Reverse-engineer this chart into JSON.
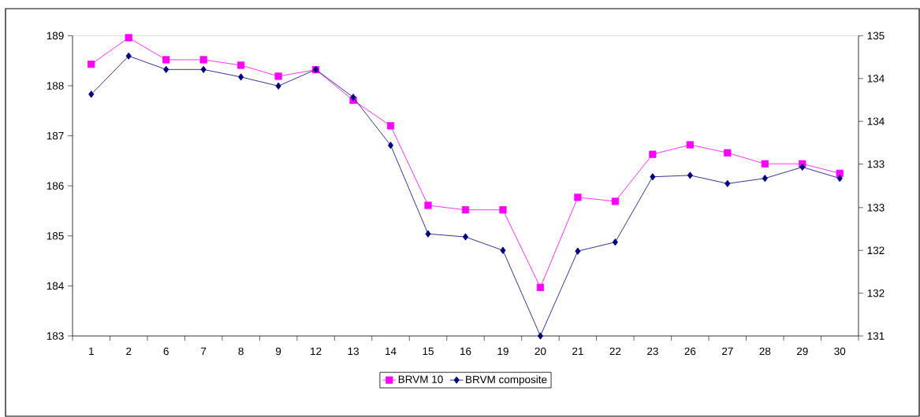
{
  "chart_data": {
    "type": "line",
    "categories": [
      "1",
      "2",
      "6",
      "7",
      "8",
      "9",
      "12",
      "13",
      "14",
      "15",
      "16",
      "19",
      "20",
      "21",
      "22",
      "23",
      "26",
      "27",
      "28",
      "29",
      "30"
    ],
    "series": [
      {
        "name": "BRVM 10",
        "color": "#ff00ff",
        "marker": "square",
        "values": [
          188.43,
          188.96,
          188.52,
          188.52,
          188.41,
          188.19,
          188.32,
          187.71,
          187.2,
          185.61,
          185.52,
          185.52,
          183.97,
          185.77,
          185.69,
          186.63,
          186.82,
          186.66,
          186.44,
          186.44,
          186.25
        ]
      },
      {
        "name": "BRVM composite",
        "color": "#000080",
        "marker": "diamond",
        "axis": "y2",
        "values": [
          134.22,
          134.73,
          134.55,
          134.55,
          134.45,
          134.33,
          134.55,
          134.18,
          133.54,
          132.36,
          132.32,
          132.14,
          131,
          132.13,
          132.25,
          133.12,
          133.14,
          133.03,
          133.1,
          133.25,
          133.1
        ]
      }
    ],
    "ylim": [
      183,
      189
    ],
    "yticks": [
      183,
      184,
      185,
      186,
      187,
      188,
      189
    ],
    "y2lim": [
      131,
      135
    ],
    "y2ticks": [
      131,
      {
        "value": 131.57,
        "label": "132"
      },
      {
        "value": 132.14,
        "label": "132"
      },
      {
        "value": 132.71,
        "label": "133"
      },
      {
        "value": 133.29,
        "label": "133"
      },
      {
        "value": 133.86,
        "label": "134"
      },
      {
        "value": 134.43,
        "label": "134"
      },
      135
    ],
    "legend": "bottom",
    "grid": false,
    "line_style": "solid"
  }
}
